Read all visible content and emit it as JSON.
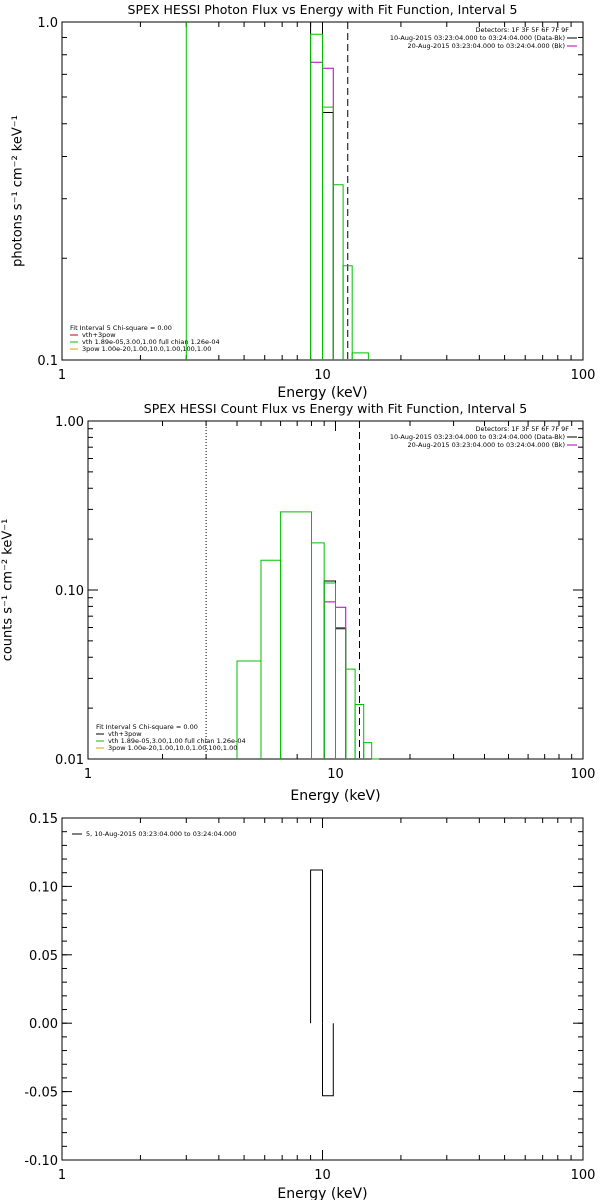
{
  "chart_data": [
    {
      "type": "line",
      "title": "SPEX HESSI Photon Flux vs Energy with Fit Function, Interval 5",
      "xlabel": "Energy (keV)",
      "ylabel": "photons s⁻¹ cm⁻² keV⁻¹",
      "xscale": "log",
      "yscale": "log",
      "xlim": [
        1,
        100
      ],
      "ylim": [
        0.1,
        1.0
      ],
      "x_ticks": [
        1,
        10,
        100
      ],
      "x_tick_labels": [
        "1",
        "10",
        "100"
      ],
      "y_ticks": [
        0.1,
        1.0
      ],
      "y_tick_labels": [
        "0.1",
        "1.0"
      ],
      "vlines": [
        {
          "x": 3.0,
          "style": "solid",
          "color": "#00c000"
        },
        {
          "x": 12.5,
          "style": "dashed",
          "color": "#000000"
        }
      ],
      "detectors_text": "Detectors: 1F 3F 5F 6F 7F 9F",
      "legend_right": [
        {
          "label": "10-Aug-2015 03:23:04.000 to 03:24:04.000 (Data-Bk)",
          "color": "#000000"
        },
        {
          "label": "20-Aug-2015 03:23:04.000 to 03:24:04.000 (Bk)",
          "color": "#b000b0"
        }
      ],
      "fit_header": "Fit Interval 5   Chi-square = 0.00",
      "legend_left": [
        {
          "label": "vth+3pow",
          "color": "#c00000"
        },
        {
          "label": "vth 1.89e-05,3.00,1.00  full chian 1.26e-04",
          "color": "#00c000"
        },
        {
          "label": "3pow 1.00e-20,1.00,10.0,1.00,100,1.00",
          "color": "#e0a000"
        }
      ],
      "series": [
        {
          "name": "Data-Bk",
          "color": "#000000",
          "steps": [
            [
              9.0,
              10.0,
              1.0
            ],
            [
              10.0,
              11.0,
              0.54
            ]
          ]
        },
        {
          "name": "Bk",
          "color": "#b000b0",
          "steps": [
            [
              9.0,
              10.0,
              0.76
            ],
            [
              10.0,
              11.0,
              0.73
            ]
          ]
        },
        {
          "name": "vth",
          "color": "#00c000",
          "steps": [
            [
              9.0,
              10.0,
              0.92
            ],
            [
              10.0,
              11.0,
              0.56
            ],
            [
              11.0,
              12.0,
              0.33
            ],
            [
              12.0,
              13.0,
              0.19
            ],
            [
              13.0,
              15.0,
              0.105
            ]
          ]
        }
      ]
    },
    {
      "type": "line",
      "title": "SPEX HESSI Count Flux vs Energy with Fit Function, Interval 5",
      "xlabel": "Energy (keV)",
      "ylabel": "counts s⁻¹ cm⁻² keV⁻¹",
      "xscale": "log",
      "yscale": "log",
      "xlim": [
        1,
        100
      ],
      "ylim": [
        0.01,
        1.0
      ],
      "x_ticks": [
        1,
        10,
        100
      ],
      "x_tick_labels": [
        "1",
        "10",
        "100"
      ],
      "y_ticks": [
        0.01,
        0.1,
        1.0
      ],
      "y_tick_labels": [
        "0.01",
        "0.10",
        "1.00"
      ],
      "vlines": [
        {
          "x": 3.0,
          "style": "dotted",
          "color": "#000000"
        },
        {
          "x": 12.5,
          "style": "dashed",
          "color": "#000000"
        }
      ],
      "detectors_text": "Detectors: 1F 3F 5F 6F 7F 9F",
      "legend_right": [
        {
          "label": "10-Aug-2015 03:23:04.000 to 03:24:04.000 (Data-Bk)",
          "color": "#000000"
        },
        {
          "label": "20-Aug-2015 03:23:04.000 to 03:24:04.000 (Bk)",
          "color": "#b000b0"
        }
      ],
      "fit_header": "Fit Interval 5   Chi-square = 0.00",
      "legend_left": [
        {
          "label": "vth+3pow",
          "color": "#000000"
        },
        {
          "label": "vth 1.89e-05,3.00,1.00  full chian 1.26e-04",
          "color": "#00c000"
        },
        {
          "label": "3pow 1.00e-20,1.00,10.0,1.00,100,1.00",
          "color": "#e0a000"
        }
      ],
      "series": [
        {
          "name": "Data-Bk",
          "color": "#000000",
          "steps": [
            [
              9.0,
              10.0,
              0.113
            ],
            [
              10.0,
              11.0,
              0.059
            ]
          ]
        },
        {
          "name": "Bk",
          "color": "#b000b0",
          "steps": [
            [
              9.0,
              10.0,
              0.085
            ],
            [
              10.0,
              11.0,
              0.079
            ]
          ]
        },
        {
          "name": "vth",
          "color": "#00c000",
          "steps": [
            [
              4.0,
              5.0,
              0.038
            ],
            [
              5.0,
              6.0,
              0.15
            ],
            [
              6.0,
              8.0,
              0.29
            ],
            [
              8.0,
              9.0,
              0.19
            ],
            [
              9.0,
              10.0,
              0.11
            ],
            [
              10.0,
              11.0,
              0.06
            ],
            [
              11.0,
              12.0,
              0.034
            ],
            [
              12.0,
              13.0,
              0.021
            ],
            [
              13.0,
              14.0,
              0.0125
            ],
            [
              14.0,
              15.0,
              0.01
            ]
          ]
        }
      ]
    },
    {
      "type": "line",
      "title": "",
      "xlabel": "Energy (keV)",
      "ylabel": "",
      "xscale": "log",
      "yscale": "linear",
      "xlim": [
        1,
        100
      ],
      "ylim": [
        -0.1,
        0.15
      ],
      "x_ticks": [
        1,
        10,
        100
      ],
      "x_tick_labels": [
        "1",
        "10",
        "100"
      ],
      "y_ticks": [
        -0.1,
        -0.05,
        0.0,
        0.05,
        0.1,
        0.15
      ],
      "y_tick_labels": [
        "-0.10",
        "-0.05",
        "0.00",
        "0.05",
        "0.10",
        "0.15"
      ],
      "vlines": [],
      "legend_top_left": {
        "label": "5, 10-Aug-2015 03:23:04.000 to 03:24:04.000",
        "color": "#000000"
      },
      "series": [
        {
          "name": "5, 10-Aug-2015 03:23:04.000 to 03:24:04.000",
          "color": "#000000",
          "steps": [
            [
              9.0,
              10.0,
              0.112
            ],
            [
              10.0,
              11.0,
              -0.053
            ]
          ]
        }
      ]
    }
  ]
}
